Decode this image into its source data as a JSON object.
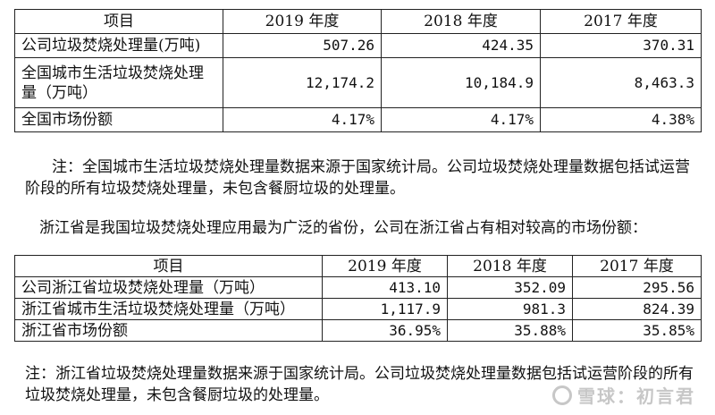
{
  "table1": {
    "headers": [
      "项目",
      "2019 年度",
      "2018 年度",
      "2017 年度"
    ],
    "rows": [
      {
        "label": "公司垃圾焚烧处理量(万吨)",
        "v2019": "507.26",
        "v2018": "424.35",
        "v2017": "370.31"
      },
      {
        "label": "全国城市生活垃圾焚烧处理量（万吨）",
        "v2019": "12,174.2",
        "v2018": "10,184.9",
        "v2017": "8,463.3"
      },
      {
        "label": "全国市场份额",
        "v2019": "4.17%",
        "v2018": "4.17%",
        "v2017": "4.38%"
      }
    ]
  },
  "note1": "注：全国城市生活垃圾焚烧处理量数据来源于国家统计局。公司垃圾焚烧处理量数据包括试运营阶段的所有垃圾焚烧处理量，未包含餐厨垃圾的处理量。",
  "intro": "浙江省是我国垃圾焚烧处理应用最为广泛的省份，公司在浙江省占有相对较高的市场份额：",
  "table2": {
    "headers": [
      "项目",
      "2019 年度",
      "2018 年度",
      "2017 年度"
    ],
    "rows": [
      {
        "label": "公司浙江省垃圾焚烧处理量（万吨）",
        "v2019": "413.10",
        "v2018": "352.09",
        "v2017": "295.56"
      },
      {
        "label": "浙江省城市生活垃圾焚烧处理量（万吨）",
        "v2019": "1,117.9",
        "v2018": "981.3",
        "v2017": "824.39"
      },
      {
        "label": "浙江省市场份额",
        "v2019": "36.95%",
        "v2018": "35.88%",
        "v2017": "35.85%"
      }
    ]
  },
  "note2": "注：浙江省垃圾焚烧处理量数据来源于国家统计局。公司垃圾焚烧处理量数据包括试运营阶段的所有垃圾焚烧处理量，未包含餐厨垃圾的处理量。",
  "watermark": "雪球：初言君"
}
